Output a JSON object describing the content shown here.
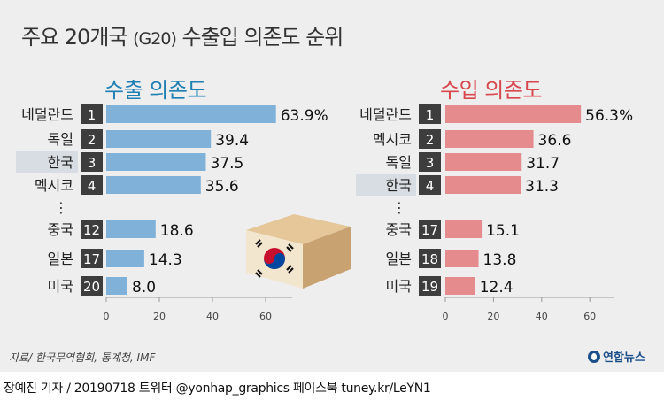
{
  "title_main": "주요 20개국 ",
  "title_paren": "(G20)",
  "title_rest": " 수출입 의존도 순위",
  "source": "자료/ 한국무역협회, 통계청, IMF",
  "logo": "연합뉴스",
  "footer": "장예진 기자 / 20190718 트위터 @yonhap_graphics  페이스북 tuney.kr/LeYN1",
  "colors": {
    "export_bar": "#7fb1d9",
    "import_bar": "#e58b8e",
    "export_heading": "#1e7fb3",
    "import_heading": "#d9474e",
    "rank_box": "#3d3d3d",
    "korea_highlight": "#d7dde2"
  },
  "chart_data": [
    {
      "type": "bar",
      "orientation": "horizontal",
      "title": "수출 의존도",
      "categories": [
        "네덜란드",
        "독일",
        "한국",
        "멕시코",
        "중국",
        "일본",
        "미국"
      ],
      "ranks": [
        "1",
        "2",
        "3",
        "4",
        "12",
        "17",
        "20"
      ],
      "values": [
        63.9,
        39.4,
        37.5,
        35.6,
        18.6,
        14.3,
        8.0
      ],
      "value_labels": [
        "63.9%",
        "39.4",
        "37.5",
        "35.6",
        "18.6",
        "14.3",
        "8.0"
      ],
      "highlight": "한국",
      "gap_marker": "⋮",
      "xlim": [
        0,
        70
      ],
      "xticks": [
        0,
        20,
        40,
        60
      ]
    },
    {
      "type": "bar",
      "orientation": "horizontal",
      "title": "수입 의존도",
      "categories": [
        "네덜란드",
        "멕시코",
        "독일",
        "한국",
        "중국",
        "일본",
        "미국"
      ],
      "ranks": [
        "1",
        "2",
        "3",
        "4",
        "17",
        "18",
        "19"
      ],
      "values": [
        56.3,
        36.6,
        31.7,
        31.3,
        15.1,
        13.8,
        12.4
      ],
      "value_labels": [
        "56.3%",
        "36.6",
        "31.7",
        "31.3",
        "15.1",
        "13.8",
        "12.4"
      ],
      "highlight": "한국",
      "gap_marker": "⋮",
      "xlim": [
        0,
        70
      ],
      "xticks": [
        0,
        20,
        40,
        60
      ]
    }
  ]
}
